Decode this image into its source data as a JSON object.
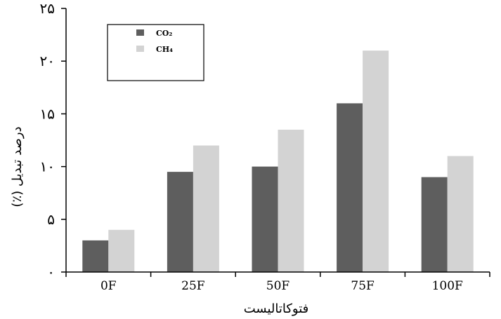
{
  "chart_data": {
    "type": "bar",
    "categories": [
      "0F",
      "25F",
      "50F",
      "75F",
      "100F"
    ],
    "series": [
      {
        "name": "CO₂",
        "values": [
          3,
          9.5,
          10,
          16,
          9
        ],
        "color": "#5e5e5e"
      },
      {
        "name": "CH₄",
        "values": [
          4,
          12,
          13.5,
          21,
          11
        ],
        "color": "#d3d3d3"
      }
    ],
    "xlabel": "فتوکاتالیست",
    "ylabel": "درصد تبدیل (٪)",
    "ylim": [
      0,
      25
    ],
    "yticks": [
      0,
      5,
      10,
      15,
      20,
      25
    ],
    "ytick_labels": [
      "٠",
      "۵",
      "١٠",
      "١۵",
      "٢٠",
      "٢۵"
    ],
    "legend_position": "top-left",
    "grid": false
  }
}
